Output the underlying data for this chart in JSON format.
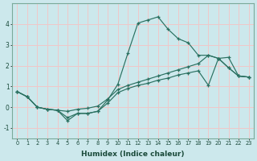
{
  "xlabel": "Humidex (Indice chaleur)",
  "bg_color": "#cce8ec",
  "grid_color": "#f0c8c8",
  "line_color": "#2a7060",
  "x_values": [
    0,
    1,
    2,
    3,
    4,
    5,
    6,
    7,
    8,
    9,
    10,
    11,
    12,
    13,
    14,
    15,
    16,
    17,
    18,
    19,
    20,
    21,
    22,
    23
  ],
  "y_peak": [
    0.75,
    0.5,
    0.0,
    -0.1,
    -0.15,
    -0.65,
    -0.3,
    -0.3,
    -0.2,
    0.35,
    1.1,
    2.6,
    4.05,
    4.2,
    4.35,
    3.75,
    3.3,
    3.1,
    2.5,
    2.5,
    2.35,
    1.9,
    1.5,
    1.45
  ],
  "y_high": [
    0.75,
    0.5,
    0.0,
    -0.1,
    -0.15,
    -0.2,
    -0.1,
    -0.05,
    0.05,
    0.4,
    0.85,
    1.05,
    1.2,
    1.35,
    1.5,
    1.65,
    1.8,
    1.95,
    2.1,
    2.5,
    2.35,
    2.4,
    1.5,
    1.45
  ],
  "y_low": [
    0.75,
    0.5,
    0.0,
    -0.1,
    -0.15,
    -0.5,
    -0.3,
    -0.3,
    -0.2,
    0.2,
    0.7,
    0.9,
    1.05,
    1.15,
    1.3,
    1.4,
    1.55,
    1.65,
    1.75,
    1.05,
    2.35,
    1.9,
    1.5,
    1.45
  ],
  "ylim": [
    -1.5,
    5.0
  ],
  "xlim": [
    -0.5,
    23.5
  ],
  "yticks": [
    -1,
    0,
    1,
    2,
    3,
    4
  ],
  "xticks": [
    0,
    1,
    2,
    3,
    4,
    5,
    6,
    7,
    8,
    9,
    10,
    11,
    12,
    13,
    14,
    15,
    16,
    17,
    18,
    19,
    20,
    21,
    22,
    23
  ]
}
